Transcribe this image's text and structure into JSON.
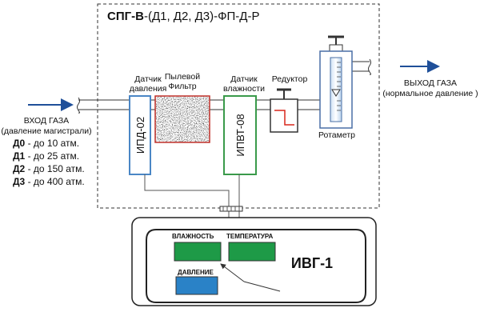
{
  "title": {
    "bold": "СПГ-В",
    "rest": "-(Д1, Д2, Д3)-ФП-Д-Р"
  },
  "inlet": {
    "label": "ВХОД ГАЗА",
    "note": "(давление магистрали)",
    "ranges": [
      {
        "code": "Д0",
        "text": " - до 10 атм."
      },
      {
        "code": "Д1",
        "text": " - до 25 атм."
      },
      {
        "code": "Д2",
        "text": " - до 150 атм."
      },
      {
        "code": "Д3",
        "text": " - до 400 атм."
      }
    ]
  },
  "outlet": {
    "label": "ВЫХОД ГАЗА",
    "note": "(нормальное давление )"
  },
  "components": {
    "pressure_sensor": {
      "caption": [
        "Датчик",
        "давления"
      ],
      "model": "ИПД-02"
    },
    "dust_filter": {
      "caption": [
        "Пылевой",
        "Фильтр"
      ]
    },
    "humidity_sensor": {
      "caption": [
        "Датчик",
        "влажности"
      ],
      "model": "ИПВТ-08"
    },
    "reducer": {
      "caption": "Редуктор"
    },
    "rotameter": {
      "caption": "Ротаметр"
    }
  },
  "device": {
    "model": "ИВГ-1",
    "displays": [
      "ВЛАЖНОСТЬ",
      "ТЕМПЕРАТУРА",
      "ДАВЛЕНИЕ"
    ]
  }
}
